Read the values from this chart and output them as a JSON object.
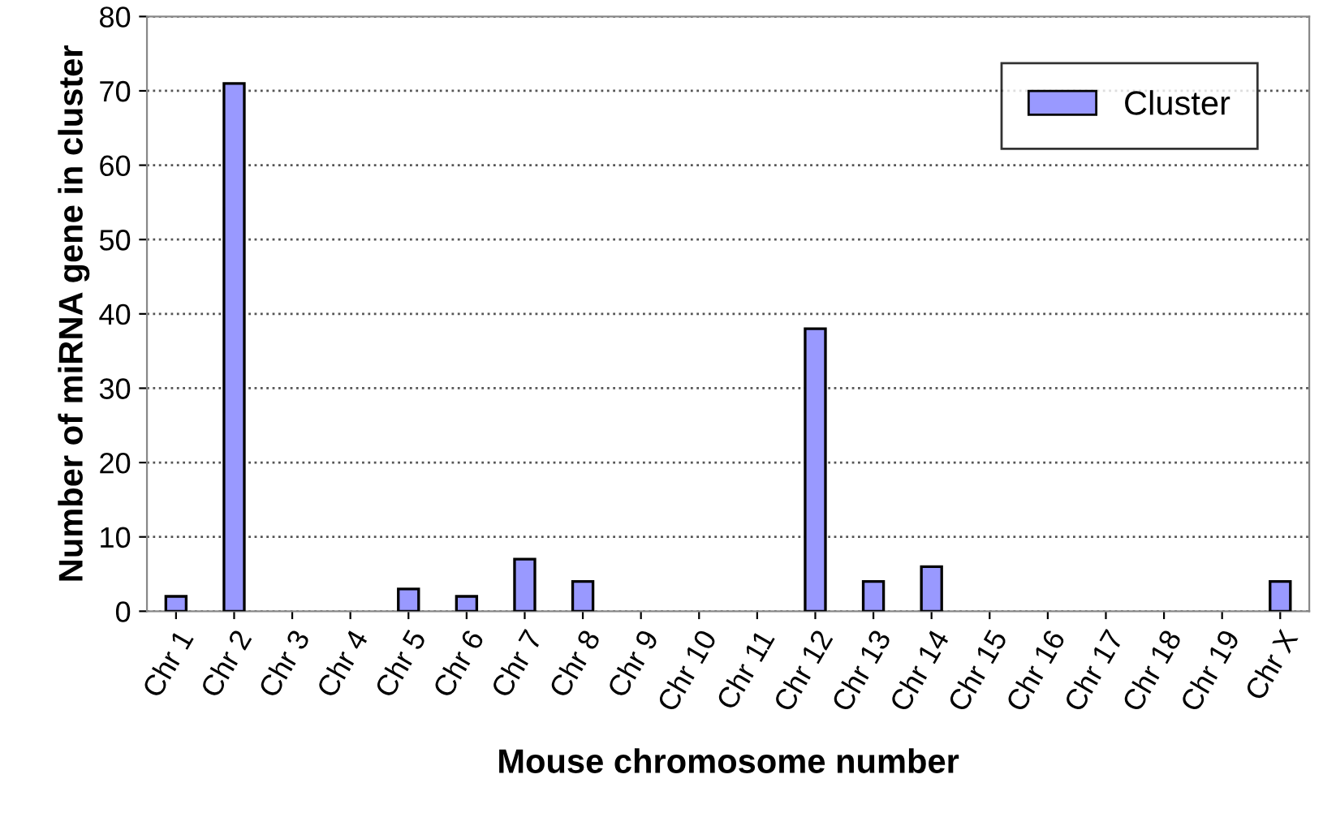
{
  "chart_data": {
    "type": "bar",
    "xlabel": "Mouse chromosome number",
    "ylabel": "Number of miRNA gene in cluster",
    "categories": [
      "Chr 1",
      "Chr 2",
      "Chr 3",
      "Chr 4",
      "Chr 5",
      "Chr 6",
      "Chr 7",
      "Chr 8",
      "Chr 9",
      "Chr 10",
      "Chr 11",
      "Chr 12",
      "Chr 13",
      "Chr 14",
      "Chr 15",
      "Chr 16",
      "Chr 17",
      "Chr 18",
      "Chr 19",
      "Chr X"
    ],
    "series": [
      {
        "name": "Cluster",
        "color": "#9999ff",
        "values": [
          2,
          71,
          null,
          null,
          3,
          2,
          7,
          4,
          null,
          null,
          null,
          38,
          4,
          6,
          null,
          null,
          null,
          null,
          null,
          4
        ]
      }
    ],
    "ylim": [
      0,
      80
    ],
    "yticks": [
      0,
      10,
      20,
      30,
      40,
      50,
      60,
      70,
      80
    ],
    "grid": "y",
    "legend": "top right"
  }
}
